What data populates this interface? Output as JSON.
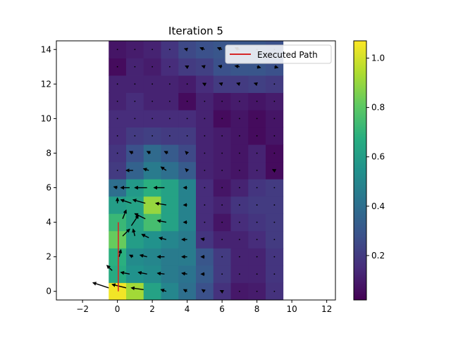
{
  "chart_data": {
    "type": "heatmap",
    "title": "Iteration 5",
    "xlabel": "",
    "ylabel": "",
    "xlim": [
      -3.5,
      12.5
    ],
    "ylim": [
      -0.5,
      14.5
    ],
    "x_ticks": [
      -2,
      0,
      2,
      4,
      6,
      8,
      10,
      12
    ],
    "y_ticks": [
      0,
      2,
      4,
      6,
      8,
      10,
      12,
      14
    ],
    "grid": false,
    "legend": {
      "placement": "top-right",
      "entries": [
        {
          "name": "Executed Path",
          "color": "#d62728"
        }
      ]
    },
    "colorbar": {
      "min": 0.02,
      "max": 1.07,
      "ticks": [
        "0.2",
        "0.4",
        "0.6",
        "0.8",
        "1.0"
      ],
      "tick_values": [
        0.2,
        0.4,
        0.6,
        0.8,
        1.0
      ],
      "colormap": "viridis"
    },
    "grid_x": [
      0,
      1,
      2,
      3,
      4,
      5,
      6,
      7,
      8,
      9
    ],
    "grid_y": [
      0,
      1,
      2,
      3,
      4,
      5,
      6,
      7,
      8,
      9,
      10,
      11,
      12,
      13,
      14
    ],
    "values": [
      [
        1.05,
        0.92,
        0.62,
        0.5,
        0.4,
        0.28,
        0.17,
        0.09,
        0.1,
        0.17
      ],
      [
        0.66,
        0.55,
        0.52,
        0.45,
        0.42,
        0.32,
        0.2,
        0.12,
        0.12,
        0.18
      ],
      [
        0.68,
        0.52,
        0.5,
        0.45,
        0.45,
        0.3,
        0.2,
        0.12,
        0.12,
        0.18
      ],
      [
        0.82,
        0.6,
        0.55,
        0.5,
        0.45,
        0.18,
        0.12,
        0.12,
        0.15,
        0.2
      ],
      [
        0.72,
        0.62,
        0.75,
        0.62,
        0.48,
        0.15,
        0.08,
        0.15,
        0.18,
        0.2
      ],
      [
        0.6,
        0.62,
        0.9,
        0.62,
        0.48,
        0.15,
        0.12,
        0.18,
        0.2,
        0.2
      ],
      [
        0.4,
        0.58,
        0.68,
        0.62,
        0.48,
        0.15,
        0.08,
        0.12,
        0.18,
        0.2
      ],
      [
        0.2,
        0.35,
        0.45,
        0.4,
        0.32,
        0.12,
        0.1,
        0.08,
        0.12,
        0.05
      ],
      [
        0.18,
        0.28,
        0.38,
        0.32,
        0.25,
        0.12,
        0.1,
        0.08,
        0.12,
        0.05
      ],
      [
        0.15,
        0.2,
        0.22,
        0.2,
        0.2,
        0.12,
        0.1,
        0.08,
        0.05,
        0.08
      ],
      [
        0.15,
        0.15,
        0.15,
        0.15,
        0.15,
        0.12,
        0.05,
        0.08,
        0.05,
        0.08
      ],
      [
        0.12,
        0.15,
        0.12,
        0.12,
        0.05,
        0.12,
        0.08,
        0.1,
        0.08,
        0.1
      ],
      [
        0.12,
        0.12,
        0.12,
        0.12,
        0.1,
        0.15,
        0.2,
        0.2,
        0.22,
        0.2
      ],
      [
        0.05,
        0.12,
        0.1,
        0.15,
        0.2,
        0.22,
        0.28,
        0.3,
        0.3,
        0.28
      ],
      [
        0.08,
        0.1,
        0.12,
        0.18,
        0.25,
        0.28,
        0.3,
        0.3,
        0.3,
        0.28
      ]
    ],
    "vectors": [
      {
        "x": -0.5,
        "y": 0.2,
        "u": -0.9,
        "v": 0.3
      },
      {
        "x": 0.5,
        "y": 0.2,
        "u": -0.8,
        "v": 0.2
      },
      {
        "x": 1.5,
        "y": 0.1,
        "u": -0.7,
        "v": 0.1
      },
      {
        "x": 2.8,
        "y": 0.0,
        "u": -0.3,
        "v": 0.1
      },
      {
        "x": 4,
        "y": 0.0,
        "u": -0.2,
        "v": 0.1
      },
      {
        "x": 5,
        "y": 0,
        "u": -0.15,
        "v": 0.1
      },
      {
        "x": 6,
        "y": 0,
        "u": -0.1,
        "v": 0.05
      },
      {
        "x": 7,
        "y": 0,
        "u": -0.05,
        "v": 0
      },
      {
        "x": 8,
        "y": 0,
        "u": -0.05,
        "v": 0
      },
      {
        "x": 9,
        "y": 0,
        "u": -0.05,
        "v": 0
      },
      {
        "x": -0.3,
        "y": 1.2,
        "u": -0.3,
        "v": 0.3
      },
      {
        "x": 0.7,
        "y": 1.0,
        "u": -0.5,
        "v": 0.1
      },
      {
        "x": 1.7,
        "y": 1.0,
        "u": -0.5,
        "v": 0.1
      },
      {
        "x": 2.7,
        "y": 1.0,
        "u": -0.4,
        "v": 0.05
      },
      {
        "x": 4,
        "y": 1.0,
        "u": -0.3,
        "v": 0.05
      },
      {
        "x": 5,
        "y": 1,
        "u": -0.2,
        "v": 0
      },
      {
        "x": 6,
        "y": 1,
        "u": -0.1,
        "v": 0
      },
      {
        "x": 7,
        "y": 1,
        "u": -0.05,
        "v": 0
      },
      {
        "x": 8,
        "y": 1,
        "u": -0.05,
        "v": 0
      },
      {
        "x": 9,
        "y": 1,
        "u": -0.05,
        "v": 0
      },
      {
        "x": 0.1,
        "y": 2.0,
        "u": 0.1,
        "v": 0.4
      },
      {
        "x": 0.9,
        "y": 2.0,
        "u": -0.2,
        "v": 0.1
      },
      {
        "x": 1.7,
        "y": 2.0,
        "u": -0.4,
        "v": 0.1
      },
      {
        "x": 2.7,
        "y": 2.0,
        "u": -0.4,
        "v": 0.0
      },
      {
        "x": 4,
        "y": 2.0,
        "u": -0.3,
        "v": 0.0
      },
      {
        "x": 5,
        "y": 2,
        "u": -0.2,
        "v": 0
      },
      {
        "x": 6,
        "y": 2,
        "u": -0.1,
        "v": 0
      },
      {
        "x": 7,
        "y": 2,
        "u": -0.05,
        "v": 0
      },
      {
        "x": 8,
        "y": 2,
        "u": -0.05,
        "v": 0
      },
      {
        "x": 9,
        "y": 2,
        "u": -0.05,
        "v": 0
      },
      {
        "x": 0.3,
        "y": 3.2,
        "u": 0.4,
        "v": 0.4
      },
      {
        "x": 1.0,
        "y": 3.2,
        "u": -0.1,
        "v": 0.4
      },
      {
        "x": 1.8,
        "y": 3.1,
        "u": -0.4,
        "v": 0.2
      },
      {
        "x": 2.8,
        "y": 3.0,
        "u": -0.4,
        "v": 0.1
      },
      {
        "x": 4,
        "y": 3.0,
        "u": -0.3,
        "v": 0.0
      },
      {
        "x": 5,
        "y": 3,
        "u": -0.2,
        "v": 0.05
      },
      {
        "x": 6,
        "y": 3,
        "u": -0.1,
        "v": 0
      },
      {
        "x": 7,
        "y": 3,
        "u": -0.05,
        "v": 0
      },
      {
        "x": 8,
        "y": 3,
        "u": -0.05,
        "v": 0
      },
      {
        "x": 9,
        "y": 3,
        "u": -0.05,
        "v": 0
      },
      {
        "x": 0.3,
        "y": 4.2,
        "u": 0.2,
        "v": 0.5
      },
      {
        "x": 0.8,
        "y": 3.8,
        "u": 0.4,
        "v": 0.6
      },
      {
        "x": 1.6,
        "y": 4.2,
        "u": -0.6,
        "v": 0.3
      },
      {
        "x": 2.8,
        "y": 4.0,
        "u": -0.5,
        "v": 0.1
      },
      {
        "x": 4,
        "y": 4.0,
        "u": -0.2,
        "v": 0.0
      },
      {
        "x": 5,
        "y": 4,
        "u": -0.1,
        "v": 0
      },
      {
        "x": 6,
        "y": 4,
        "u": -0.05,
        "v": 0
      },
      {
        "x": 7,
        "y": 4,
        "u": -0.05,
        "v": 0
      },
      {
        "x": 8,
        "y": 4,
        "u": -0.05,
        "v": 0
      },
      {
        "x": 9,
        "y": 4,
        "u": -0.05,
        "v": 0
      },
      {
        "x": 0.0,
        "y": 5.1,
        "u": 0.0,
        "v": 0.3
      },
      {
        "x": 0.8,
        "y": 5.1,
        "u": -0.6,
        "v": 0.2
      },
      {
        "x": 1.6,
        "y": 5.1,
        "u": -0.7,
        "v": 0.2
      },
      {
        "x": 2.8,
        "y": 5.0,
        "u": -0.6,
        "v": 0.1
      },
      {
        "x": 4,
        "y": 5.0,
        "u": -0.2,
        "v": 0.0
      },
      {
        "x": 5,
        "y": 5,
        "u": -0.1,
        "v": 0
      },
      {
        "x": 6,
        "y": 5,
        "u": -0.05,
        "v": 0
      },
      {
        "x": 7,
        "y": 5,
        "u": -0.05,
        "v": 0
      },
      {
        "x": 8,
        "y": 5,
        "u": -0.05,
        "v": 0
      },
      {
        "x": 9,
        "y": 5,
        "u": -0.05,
        "v": 0
      },
      {
        "x": 0,
        "y": 6.0,
        "u": -0.2,
        "v": 0.05
      },
      {
        "x": 0.7,
        "y": 6.0,
        "u": -0.5,
        "v": 0.0
      },
      {
        "x": 1.7,
        "y": 6.0,
        "u": -0.7,
        "v": 0.0
      },
      {
        "x": 2.7,
        "y": 6.0,
        "u": -0.6,
        "v": 0.0
      },
      {
        "x": 4,
        "y": 6.0,
        "u": -0.2,
        "v": 0.0
      },
      {
        "x": 5,
        "y": 6,
        "u": -0.1,
        "v": 0
      },
      {
        "x": 6,
        "y": 6,
        "u": -0.05,
        "v": 0
      },
      {
        "x": 7,
        "y": 6,
        "u": -0.05,
        "v": 0
      },
      {
        "x": 8,
        "y": 6,
        "u": -0.05,
        "v": 0
      },
      {
        "x": 9,
        "y": 6,
        "u": -0.05,
        "v": 0
      },
      {
        "x": 0,
        "y": 7.0,
        "u": -0.1,
        "v": 0.0
      },
      {
        "x": 0.9,
        "y": 7.0,
        "u": -0.4,
        "v": 0.0
      },
      {
        "x": 1.8,
        "y": 7.0,
        "u": -0.3,
        "v": 0.1
      },
      {
        "x": 2.8,
        "y": 7.0,
        "u": -0.3,
        "v": 0.2
      },
      {
        "x": 4,
        "y": 7.0,
        "u": -0.1,
        "v": 0.1
      },
      {
        "x": 5,
        "y": 7,
        "u": -0.05,
        "v": 0
      },
      {
        "x": 6,
        "y": 7,
        "u": -0.05,
        "v": 0
      },
      {
        "x": 7,
        "y": 7,
        "u": -0.05,
        "v": 0
      },
      {
        "x": 8,
        "y": 7,
        "u": -0.05,
        "v": 0
      },
      {
        "x": 9,
        "y": 7,
        "u": -0.1,
        "v": 0.05
      },
      {
        "x": 0,
        "y": 8.0,
        "u": -0.1,
        "v": 0.0
      },
      {
        "x": 0.9,
        "y": 8.0,
        "u": -0.2,
        "v": 0.1
      },
      {
        "x": 1.9,
        "y": 8.0,
        "u": -0.2,
        "v": 0.1
      },
      {
        "x": 2.9,
        "y": 8.0,
        "u": -0.2,
        "v": 0.1
      },
      {
        "x": 4,
        "y": 8.0,
        "u": -0.1,
        "v": 0.1
      },
      {
        "x": 5,
        "y": 8,
        "u": -0.05,
        "v": 0
      },
      {
        "x": 6,
        "y": 8,
        "u": -0.05,
        "v": 0
      },
      {
        "x": 7,
        "y": 8,
        "u": -0.05,
        "v": 0
      },
      {
        "x": 8,
        "y": 8,
        "u": -0.05,
        "v": 0
      },
      {
        "x": 9,
        "y": 8,
        "u": -0.05,
        "v": 0
      },
      {
        "x": 0,
        "y": 9.0,
        "u": -0.1,
        "v": 0.0
      },
      {
        "x": 1,
        "y": 9.0,
        "u": -0.1,
        "v": 0.0
      },
      {
        "x": 2,
        "y": 9.0,
        "u": -0.1,
        "v": 0.0
      },
      {
        "x": 3,
        "y": 9.0,
        "u": -0.1,
        "v": 0.0
      },
      {
        "x": 4,
        "y": 9.0,
        "u": -0.1,
        "v": 0.0
      },
      {
        "x": 5,
        "y": 9,
        "u": -0.05,
        "v": 0
      },
      {
        "x": 6,
        "y": 9,
        "u": -0.05,
        "v": 0
      },
      {
        "x": 7,
        "y": 9,
        "u": -0.05,
        "v": 0
      },
      {
        "x": 8,
        "y": 9,
        "u": -0.05,
        "v": 0
      },
      {
        "x": 9,
        "y": 9,
        "u": -0.05,
        "v": 0
      },
      {
        "x": 0,
        "y": 10.0,
        "u": -0.1,
        "v": 0.0
      },
      {
        "x": 1,
        "y": 10.0,
        "u": -0.05,
        "v": 0.0
      },
      {
        "x": 2,
        "y": 10.0,
        "u": -0.1,
        "v": 0.0
      },
      {
        "x": 3,
        "y": 10.0,
        "u": -0.05,
        "v": 0.0
      },
      {
        "x": 4,
        "y": 10.0,
        "u": -0.05,
        "v": 0.0
      },
      {
        "x": 5,
        "y": 10,
        "u": -0.05,
        "v": 0
      },
      {
        "x": 6,
        "y": 10,
        "u": -0.05,
        "v": 0
      },
      {
        "x": 7,
        "y": 10,
        "u": -0.05,
        "v": 0
      },
      {
        "x": 8,
        "y": 10,
        "u": -0.05,
        "v": 0
      },
      {
        "x": 9,
        "y": 10,
        "u": -0.05,
        "v": 0
      },
      {
        "x": 0,
        "y": 11.0,
        "u": -0.05,
        "v": 0.0
      },
      {
        "x": 1,
        "y": 11.0,
        "u": -0.05,
        "v": 0.0
      },
      {
        "x": 2,
        "y": 11.0,
        "u": -0.05,
        "v": 0.0
      },
      {
        "x": 3,
        "y": 11.0,
        "u": -0.05,
        "v": 0.0
      },
      {
        "x": 4,
        "y": 11.0,
        "u": -0.05,
        "v": 0.0
      },
      {
        "x": 5,
        "y": 11,
        "u": -0.05,
        "v": 0
      },
      {
        "x": 6,
        "y": 11,
        "u": -0.05,
        "v": 0
      },
      {
        "x": 7,
        "y": 11,
        "u": -0.05,
        "v": 0
      },
      {
        "x": 8,
        "y": 11,
        "u": -0.05,
        "v": 0
      },
      {
        "x": 9,
        "y": 11,
        "u": -0.05,
        "v": 0
      },
      {
        "x": 0,
        "y": 12.0,
        "u": -0.05,
        "v": 0.0
      },
      {
        "x": 1,
        "y": 12.0,
        "u": -0.05,
        "v": 0.0
      },
      {
        "x": 2,
        "y": 12.0,
        "u": -0.05,
        "v": 0.0
      },
      {
        "x": 3,
        "y": 12.0,
        "u": -0.05,
        "v": 0.0
      },
      {
        "x": 4,
        "y": 12.0,
        "u": -0.05,
        "v": 0.0
      },
      {
        "x": 5,
        "y": 12,
        "u": -0.1,
        "v": 0.05
      },
      {
        "x": 6,
        "y": 12,
        "u": -0.15,
        "v": 0.05
      },
      {
        "x": 7,
        "y": 12,
        "u": -0.15,
        "v": 0.05
      },
      {
        "x": 8,
        "y": 12,
        "u": -0.15,
        "v": 0.05
      },
      {
        "x": 9,
        "y": 12,
        "u": -0.1,
        "v": 0
      },
      {
        "x": 0,
        "y": 13.0,
        "u": -0.05,
        "v": 0.0
      },
      {
        "x": 1,
        "y": 13.0,
        "u": -0.05,
        "v": 0.0
      },
      {
        "x": 2,
        "y": 13.0,
        "u": -0.05,
        "v": 0.0
      },
      {
        "x": 3,
        "y": 13.0,
        "u": -0.05,
        "v": 0.0
      },
      {
        "x": 4,
        "y": 13.0,
        "u": -0.1,
        "v": 0.05
      },
      {
        "x": 5,
        "y": 13,
        "u": -0.15,
        "v": 0.05
      },
      {
        "x": 6,
        "y": 13,
        "u": -0.2,
        "v": 0.05
      },
      {
        "x": 7,
        "y": 13,
        "u": -0.25,
        "v": 0.05
      },
      {
        "x": 8,
        "y": 13,
        "u": 0.2,
        "v": -0.05
      },
      {
        "x": 9,
        "y": 13,
        "u": 0.2,
        "v": -0.05
      },
      {
        "x": 0,
        "y": 14.0,
        "u": -0.05,
        "v": 0.0
      },
      {
        "x": 1,
        "y": 14.0,
        "u": -0.05,
        "v": 0.0
      },
      {
        "x": 2,
        "y": 14.0,
        "u": -0.05,
        "v": 0.0
      },
      {
        "x": 3,
        "y": 14.0,
        "u": -0.1,
        "v": 0.0
      },
      {
        "x": 4,
        "y": 14.0,
        "u": -0.15,
        "v": 0.05
      },
      {
        "x": 5,
        "y": 14,
        "u": -0.25,
        "v": 0.1
      },
      {
        "x": 6,
        "y": 14,
        "u": -0.25,
        "v": 0.1
      },
      {
        "x": 7,
        "y": 14,
        "u": -0.25,
        "v": 0.1
      },
      {
        "x": 8,
        "y": 14,
        "u": -0.1,
        "v": 0
      },
      {
        "x": 9,
        "y": 14,
        "u": -0.1,
        "v": 0
      }
    ],
    "path": {
      "name": "Executed Path",
      "color": "#d62728",
      "x": [
        0.05,
        0.05,
        0.05,
        0.05,
        0.05
      ],
      "y": [
        0,
        1,
        2,
        3,
        4
      ]
    }
  }
}
